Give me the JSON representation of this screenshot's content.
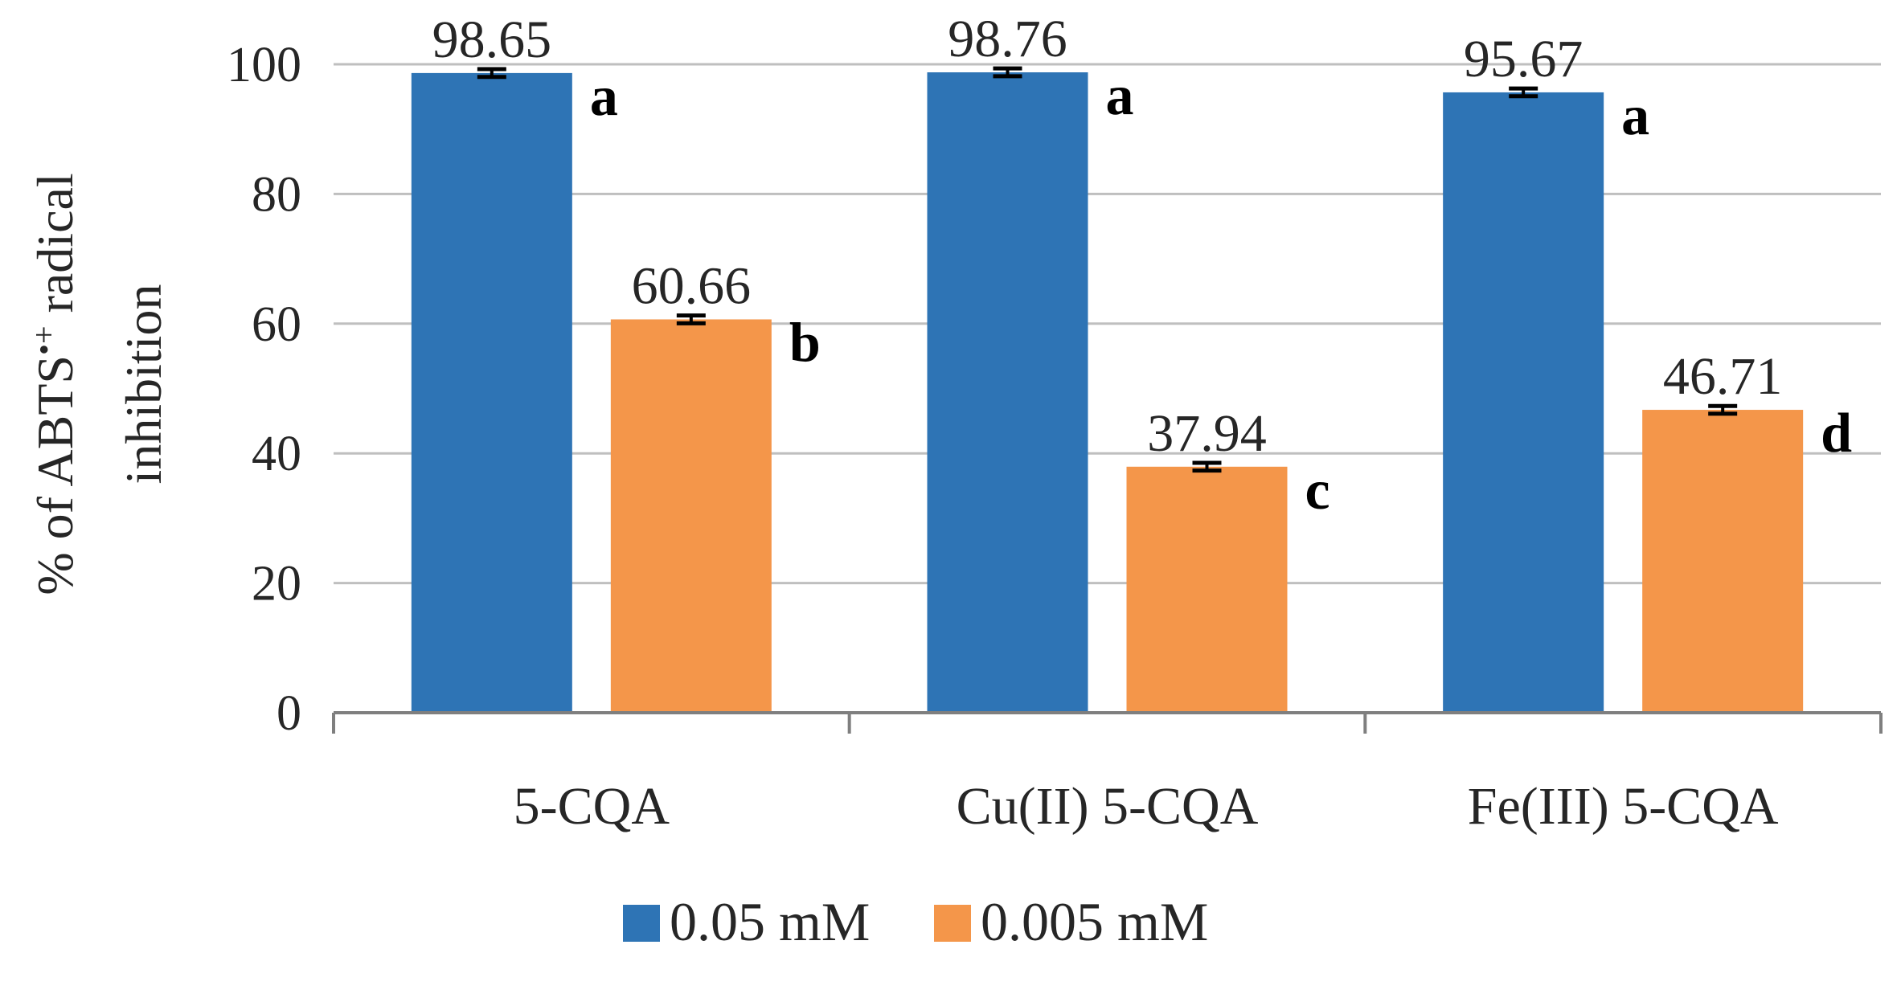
{
  "chart_data": {
    "type": "bar",
    "title": "",
    "xlabel": "",
    "ylabel_line1": "% of ABTS",
    "ylabel_superscript": "•+",
    "ylabel_line1_rest": " radical",
    "ylabel_line2": "inhibition",
    "ylim": [
      0,
      100
    ],
    "yticks": [
      0,
      20,
      40,
      60,
      80,
      100
    ],
    "ytick_labels": [
      "0",
      "20",
      "40",
      "60",
      "80",
      "100"
    ],
    "grid": true,
    "legend_position": "bottom",
    "categories": [
      "5-CQA",
      "Cu(II) 5-CQA",
      "Fe(III) 5-CQA"
    ],
    "series": [
      {
        "name": "0.05 mM",
        "color": "#2E74B5",
        "values": [
          98.65,
          98.76,
          95.67
        ],
        "value_labels": [
          "98.65",
          "98.76",
          "95.67"
        ],
        "significance": [
          "a",
          "a",
          "a"
        ],
        "error": [
          0.6,
          0.6,
          0.6
        ]
      },
      {
        "name": "0.005 mM",
        "color": "#F4964A",
        "values": [
          60.66,
          37.94,
          46.71
        ],
        "value_labels": [
          "60.66",
          "37.94",
          "46.71"
        ],
        "significance": [
          "b",
          "c",
          "d"
        ],
        "error": [
          0.6,
          0.6,
          0.6
        ]
      }
    ]
  }
}
